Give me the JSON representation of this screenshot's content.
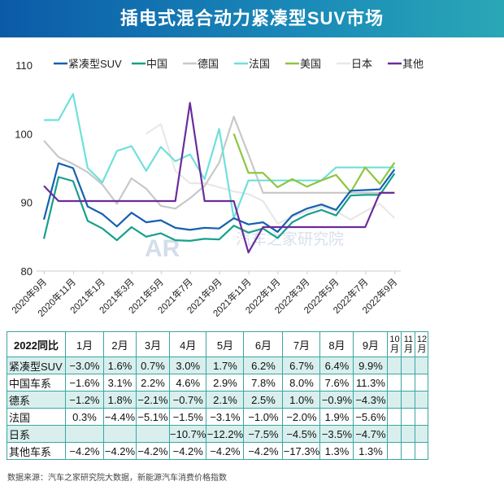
{
  "title": "插电式混合动力紧凑型SUV市场",
  "chart_data": {
    "type": "line",
    "title": "插电式混合动力紧凑型SUV市场",
    "ylim": [
      80,
      110
    ],
    "yticks": [
      "80",
      "90",
      "100",
      "110"
    ],
    "grid": false,
    "legend_position": "top",
    "x": [
      "2020年9月",
      "2020年10月",
      "2020年11月",
      "2020年12月",
      "2021年1月",
      "2021年2月",
      "2021年3月",
      "2021年4月",
      "2021年5月",
      "2021年6月",
      "2021年7月",
      "2021年8月",
      "2021年9月",
      "2021年10月",
      "2021年11月",
      "2021年12月",
      "2022年1月",
      "2022年2月",
      "2022年3月",
      "2022年4月",
      "2022年5月",
      "2022年6月",
      "2022年7月",
      "2022年8月",
      "2022年9月"
    ],
    "xticklabels": [
      "2020年9月",
      "2020年11月",
      "2021年1月",
      "2021年3月",
      "2021年5月",
      "2021年7月",
      "2021年9月",
      "2021年11月",
      "2022年1月",
      "2022年3月",
      "2022年5月",
      "2022年7月",
      "2022年9月"
    ],
    "series": [
      {
        "name": "紧凑型SUV",
        "color": "#1560b0",
        "values": [
          87.5,
          95.7,
          95.0,
          89.4,
          88.3,
          86.5,
          88.5,
          87.1,
          87.4,
          86.3,
          86.0,
          86.3,
          86.2,
          87.7,
          86.8,
          87.1,
          85.7,
          88.1,
          89.1,
          89.7,
          88.9,
          91.7,
          91.8,
          91.9,
          94.8
        ]
      },
      {
        "name": "中国",
        "color": "#17a08c",
        "values": [
          84.7,
          93.7,
          93.1,
          87.3,
          86.2,
          84.5,
          86.4,
          85.0,
          85.5,
          84.5,
          84.4,
          84.7,
          84.6,
          86.6,
          85.6,
          86.2,
          84.8,
          87.1,
          88.2,
          88.9,
          88.1,
          91.0,
          91.1,
          91.1,
          94.2
        ]
      },
      {
        "name": "德国",
        "color": "#c8c8c8",
        "values": [
          99.0,
          96.6,
          95.6,
          94.4,
          92.6,
          89.8,
          93.5,
          92.0,
          89.5,
          89.1,
          90.6,
          92.4,
          95.8,
          102.5,
          97.0,
          91.4,
          91.4,
          91.4,
          91.4,
          91.4,
          91.4,
          91.4,
          91.4,
          91.4,
          91.4
        ]
      },
      {
        "name": "法国",
        "color": "#6ee0dc",
        "values": [
          102.0,
          102.0,
          105.8,
          95.0,
          92.9,
          97.5,
          98.2,
          94.6,
          98.1,
          96.0,
          97.0,
          93.4,
          100.7,
          87.7,
          93.2,
          93.2,
          93.2,
          93.2,
          93.2,
          93.2,
          95.1,
          95.1,
          95.1,
          95.1,
          95.1
        ]
      },
      {
        "name": "美国",
        "color": "#8cc63f",
        "values": [
          null,
          null,
          null,
          null,
          null,
          null,
          null,
          null,
          null,
          null,
          null,
          null,
          null,
          100.0,
          94.3,
          94.3,
          92.2,
          93.4,
          92.3,
          93.2,
          94.0,
          91.5,
          95.1,
          92.7,
          95.8
        ]
      },
      {
        "name": "日本",
        "color": "#e8e8e8",
        "values": [
          null,
          null,
          null,
          null,
          null,
          null,
          null,
          100.0,
          101.4,
          94.6,
          92.8,
          92.8,
          92.2,
          91.6,
          91.2,
          90.2,
          86.9,
          87.9,
          88.7,
          89.4,
          88.7,
          87.5,
          88.7,
          89.8,
          87.7
        ]
      },
      {
        "name": "其他",
        "color": "#6a2c9a",
        "values": [
          92.4,
          90.2,
          90.2,
          90.2,
          90.2,
          90.2,
          90.2,
          90.2,
          90.2,
          90.2,
          104.5,
          90.2,
          90.2,
          90.2,
          82.7,
          86.4,
          86.4,
          86.4,
          86.4,
          86.4,
          86.4,
          86.4,
          86.4,
          91.4,
          91.4
        ]
      }
    ]
  },
  "watermark": "汽车之家研究院",
  "table": {
    "corner": "2022同比",
    "headers": [
      "1月",
      "2月",
      "3月",
      "4月",
      "5月",
      "6月",
      "7月",
      "8月",
      "9月",
      "10月",
      "11月",
      "12月"
    ],
    "rows": [
      {
        "label": "紧凑型SUV",
        "cells": [
          "−3.0%",
          "1.6%",
          "0.7%",
          "3.0%",
          "1.7%",
          "6.2%",
          "6.7%",
          "6.4%",
          "9.9%",
          "",
          "",
          ""
        ]
      },
      {
        "label": "中国车系",
        "cells": [
          "−1.6%",
          "3.1%",
          "2.2%",
          "4.6%",
          "2.9%",
          "7.8%",
          "8.0%",
          "7.6%",
          "11.3%",
          "",
          "",
          ""
        ]
      },
      {
        "label": "德系",
        "cells": [
          "−1.2%",
          "1.8%",
          "−2.1%",
          "−0.7%",
          "2.1%",
          "2.5%",
          "1.0%",
          "−0.9%",
          "−4.3%",
          "",
          "",
          ""
        ]
      },
      {
        "label": "法国",
        "cells": [
          "0.3%",
          "−4.4%",
          "−5.1%",
          "−1.5%",
          "−3.1%",
          "−1.0%",
          "−2.0%",
          "1.9%",
          "−5.6%",
          "",
          "",
          ""
        ]
      },
      {
        "label": "日系",
        "cells": [
          "",
          "",
          "",
          "−10.7%",
          "−12.2%",
          "−7.5%",
          "−4.5%",
          "−3.5%",
          "−4.7%",
          "",
          "",
          ""
        ]
      },
      {
        "label": "其他车系",
        "cells": [
          "−4.2%",
          "−4.2%",
          "−4.2%",
          "−4.2%",
          "−4.2%",
          "−4.2%",
          "−17.3%",
          "1.3%",
          "1.3%",
          "",
          "",
          ""
        ]
      }
    ]
  },
  "source": "数据来源：汽车之家研究院大数据，新能源汽车消费价格指数"
}
